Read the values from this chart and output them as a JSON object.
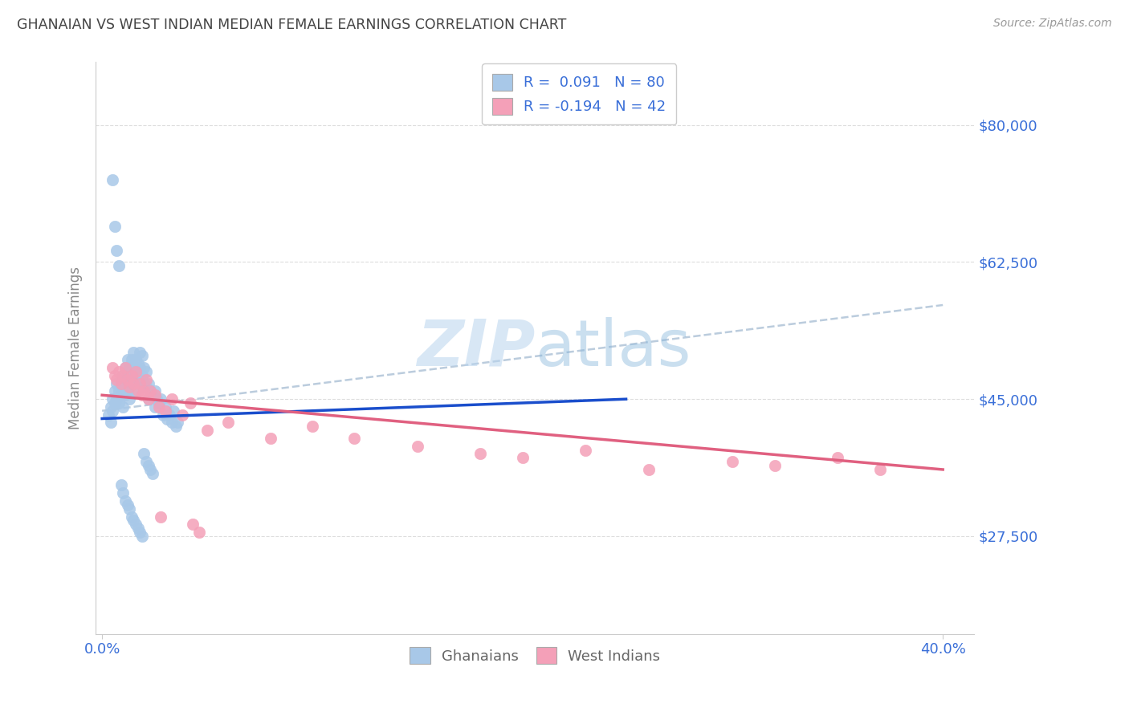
{
  "title": "GHANAIAN VS WEST INDIAN MEDIAN FEMALE EARNINGS CORRELATION CHART",
  "source": "Source: ZipAtlas.com",
  "ylabel": "Median Female Earnings",
  "ytick_labels": [
    "$27,500",
    "$45,000",
    "$62,500",
    "$80,000"
  ],
  "ytick_values": [
    27500,
    45000,
    62500,
    80000
  ],
  "ymin": 15000,
  "ymax": 88000,
  "xmin": -0.003,
  "xmax": 0.415,
  "ghanaian_color": "#a8c8e8",
  "west_indian_color": "#f4a0b8",
  "ghanaian_line_color": "#1a4ecc",
  "west_indian_line_color": "#e06080",
  "dashed_line_color": "#bbccdd",
  "title_color": "#444444",
  "source_color": "#999999",
  "tick_label_color": "#3a6fd8",
  "legend_text_color": "#3a6fd8",
  "ylabel_color": "#888888",
  "bottom_legend_color": "#666666",
  "watermark_color": "#cce0f5",
  "ghanaian_x": [
    0.003,
    0.004,
    0.004,
    0.005,
    0.005,
    0.006,
    0.006,
    0.007,
    0.007,
    0.008,
    0.008,
    0.009,
    0.009,
    0.01,
    0.01,
    0.01,
    0.011,
    0.011,
    0.011,
    0.012,
    0.012,
    0.012,
    0.013,
    0.013,
    0.013,
    0.014,
    0.014,
    0.015,
    0.015,
    0.015,
    0.016,
    0.016,
    0.016,
    0.017,
    0.017,
    0.018,
    0.018,
    0.019,
    0.019,
    0.02,
    0.02,
    0.021,
    0.021,
    0.022,
    0.022,
    0.023,
    0.024,
    0.025,
    0.025,
    0.026,
    0.027,
    0.028,
    0.029,
    0.03,
    0.031,
    0.032,
    0.033,
    0.034,
    0.035,
    0.036,
    0.005,
    0.006,
    0.007,
    0.008,
    0.009,
    0.01,
    0.011,
    0.012,
    0.013,
    0.014,
    0.015,
    0.016,
    0.017,
    0.018,
    0.019,
    0.02,
    0.021,
    0.022,
    0.023,
    0.024
  ],
  "ghanaian_y": [
    43000,
    42000,
    44000,
    43500,
    45000,
    44500,
    46000,
    45000,
    47000,
    46000,
    44500,
    45500,
    47000,
    46000,
    48000,
    44000,
    47500,
    49000,
    45500,
    48000,
    50000,
    46000,
    49000,
    47000,
    45000,
    50000,
    48000,
    51000,
    49000,
    47000,
    50000,
    48000,
    46000,
    49500,
    47500,
    51000,
    49000,
    50500,
    48000,
    49000,
    47000,
    48500,
    46500,
    47000,
    45000,
    46000,
    45500,
    46000,
    44000,
    45000,
    44500,
    45000,
    43000,
    44000,
    42500,
    43000,
    42000,
    43500,
    41500,
    42000,
    73000,
    67000,
    64000,
    62000,
    34000,
    33000,
    32000,
    31500,
    31000,
    30000,
    29500,
    29000,
    28500,
    28000,
    27500,
    38000,
    37000,
    36500,
    36000,
    35500
  ],
  "west_indian_x": [
    0.005,
    0.006,
    0.007,
    0.008,
    0.009,
    0.01,
    0.011,
    0.012,
    0.013,
    0.014,
    0.015,
    0.016,
    0.017,
    0.018,
    0.019,
    0.02,
    0.021,
    0.022,
    0.023,
    0.025,
    0.027,
    0.03,
    0.033,
    0.038,
    0.042,
    0.05,
    0.06,
    0.08,
    0.1,
    0.12,
    0.15,
    0.18,
    0.2,
    0.23,
    0.26,
    0.3,
    0.32,
    0.35,
    0.37,
    0.043,
    0.046,
    0.028
  ],
  "west_indian_y": [
    49000,
    48000,
    47500,
    48500,
    47000,
    48000,
    49000,
    47500,
    46500,
    48000,
    47000,
    48500,
    46000,
    47000,
    45500,
    46000,
    47500,
    45000,
    46000,
    45500,
    44000,
    43500,
    45000,
    43000,
    44500,
    41000,
    42000,
    40000,
    41500,
    40000,
    39000,
    38000,
    37500,
    38500,
    36000,
    37000,
    36500,
    37500,
    36000,
    29000,
    28000,
    30000
  ]
}
